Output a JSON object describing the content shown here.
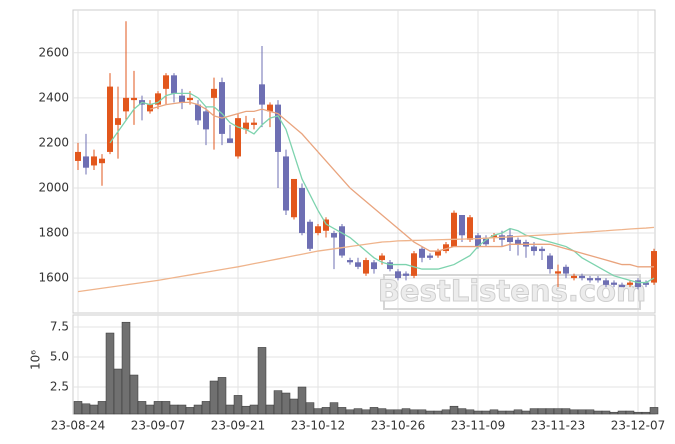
{
  "chart_data": [
    {
      "type": "candlestick",
      "ylim": [
        1445,
        2790
      ],
      "yticks": [
        1600,
        1800,
        2000,
        2200,
        2400,
        2600
      ],
      "grid": true,
      "up_color": "#e2571d",
      "down_color": "#6e6fb3",
      "watermark": "BestListens.com",
      "open": [
        2120,
        2140,
        2100,
        2110,
        2160,
        2280,
        2340,
        2390,
        2390,
        2340,
        2370,
        2440,
        2500,
        2410,
        2390,
        2370,
        2340,
        2400,
        2470,
        2220,
        2140,
        2260,
        2280,
        2460,
        2340,
        2370,
        2140,
        1870,
        2000,
        1850,
        1800,
        1810,
        1800,
        1830,
        1680,
        1670,
        1620,
        1670,
        1680,
        1670,
        1630,
        1620,
        1610,
        1730,
        1700,
        1700,
        1720,
        1740,
        1880,
        1770,
        1790,
        1780,
        1780,
        1790,
        1790,
        1770,
        1760,
        1740,
        1730,
        1700,
        1620,
        1650,
        1600,
        1610,
        1600,
        1600,
        1590,
        1580,
        1570,
        1570,
        1590,
        1580,
        1580
      ],
      "high": [
        2200,
        2240,
        2170,
        2150,
        2510,
        2450,
        2740,
        2520,
        2410,
        2390,
        2430,
        2510,
        2510,
        2440,
        2430,
        2390,
        2360,
        2490,
        2490,
        2280,
        2330,
        2320,
        2310,
        2630,
        2380,
        2390,
        2170,
        2040,
        2020,
        1860,
        1840,
        1870,
        1810,
        1840,
        1690,
        1690,
        1690,
        1680,
        1710,
        1680,
        1640,
        1630,
        1720,
        1740,
        1710,
        1730,
        1760,
        1900,
        1880,
        1880,
        1800,
        1790,
        1800,
        1810,
        1820,
        1780,
        1770,
        1760,
        1740,
        1710,
        1660,
        1660,
        1620,
        1620,
        1610,
        1610,
        1600,
        1590,
        1580,
        1590,
        1600,
        1590,
        1730
      ],
      "low": [
        2080,
        2060,
        2080,
        2010,
        2150,
        2130,
        2300,
        2280,
        2300,
        2330,
        2350,
        2370,
        2380,
        2350,
        2370,
        2280,
        2190,
        2170,
        2190,
        2200,
        2130,
        2240,
        2260,
        2270,
        2270,
        2000,
        1880,
        1860,
        1790,
        1720,
        1790,
        1780,
        1640,
        1690,
        1660,
        1640,
        1610,
        1620,
        1660,
        1630,
        1590,
        1590,
        1600,
        1670,
        1680,
        1690,
        1710,
        1740,
        1760,
        1760,
        1730,
        1740,
        1760,
        1740,
        1720,
        1700,
        1690,
        1700,
        1680,
        1620,
        1560,
        1600,
        1590,
        1590,
        1580,
        1580,
        1560,
        1560,
        1560,
        1560,
        1550,
        1560,
        1570
      ],
      "close": [
        2160,
        2090,
        2140,
        2130,
        2450,
        2310,
        2400,
        2400,
        2370,
        2370,
        2420,
        2500,
        2420,
        2380,
        2400,
        2300,
        2260,
        2440,
        2240,
        2200,
        2310,
        2290,
        2290,
        2370,
        2370,
        2160,
        1900,
        2040,
        1800,
        1730,
        1830,
        1860,
        1780,
        1700,
        1670,
        1650,
        1680,
        1640,
        1700,
        1640,
        1600,
        1610,
        1710,
        1690,
        1690,
        1720,
        1750,
        1890,
        1790,
        1870,
        1740,
        1750,
        1790,
        1770,
        1760,
        1750,
        1740,
        1720,
        1720,
        1640,
        1630,
        1620,
        1610,
        1600,
        1590,
        1590,
        1570,
        1570,
        1560,
        1580,
        1560,
        1570,
        1720
      ],
      "series": [
        {
          "color": "#7dd3ae",
          "values": [
            null,
            null,
            null,
            null,
            2200,
            2250,
            2300,
            2350,
            2380,
            2370,
            2380,
            2410,
            2420,
            2420,
            2420,
            2400,
            2360,
            2360,
            2330,
            2290,
            2270,
            2260,
            2240,
            2280,
            2310,
            2320,
            2260,
            2150,
            2040,
            1970,
            1900,
            1840,
            1820,
            1800,
            1780,
            1750,
            1720,
            1690,
            1670,
            1660,
            1660,
            1660,
            1650,
            1640,
            1640,
            1640,
            1650,
            1660,
            1680,
            1700,
            1740,
            1770,
            1790,
            1800,
            1820,
            1810,
            1790,
            1780,
            1770,
            1760,
            1750,
            1740,
            1720,
            1690,
            1670,
            1650,
            1630,
            1610,
            1600,
            1590,
            1580,
            1580,
            1600
          ]
        },
        {
          "color": "#e9a47e",
          "values": [
            null,
            null,
            null,
            null,
            null,
            null,
            null,
            null,
            null,
            2350,
            2360,
            2370,
            2375,
            2380,
            2380,
            2370,
            2350,
            2320,
            2310,
            2320,
            2330,
            2340,
            2340,
            2350,
            2340,
            2330,
            2300,
            2270,
            2240,
            2200,
            2160,
            2120,
            2080,
            2040,
            2000,
            1970,
            1940,
            1910,
            1880,
            1850,
            1820,
            1790,
            1760,
            1740,
            1720,
            1720,
            1730,
            1740,
            1740,
            1740,
            1740,
            1740,
            1740,
            1740,
            1750,
            1750,
            1750,
            1750,
            1750,
            1750,
            1740,
            1730,
            1720,
            1710,
            1700,
            1690,
            1680,
            1670,
            1660,
            1660,
            1650,
            1650,
            1650
          ]
        },
        {
          "color": "#efb48c",
          "values": [
            1540,
            1545,
            1550,
            1555,
            1560,
            1565,
            1570,
            1575,
            1580,
            1585,
            1590,
            1596,
            1602,
            1608,
            1614,
            1620,
            1626,
            1632,
            1638,
            1644,
            1650,
            1657,
            1664,
            1671,
            1678,
            1685,
            1692,
            1699,
            1706,
            1713,
            1720,
            1725,
            1730,
            1735,
            1740,
            1745,
            1750,
            1755,
            1760,
            1762,
            1765,
            1766,
            1767,
            1768,
            1769,
            1770,
            1771,
            1772,
            1773,
            1774,
            1775,
            1777,
            1779,
            1781,
            1783,
            1785,
            1787,
            1789,
            1791,
            1793,
            1795,
            1798,
            1800,
            1803,
            1805,
            1808,
            1810,
            1813,
            1815,
            1818,
            1820,
            1822,
            1825
          ]
        }
      ]
    },
    {
      "type": "bar",
      "ylim": [
        0.25,
        8.5
      ],
      "yticks": [
        2.5,
        {
          "value": 5,
          "label": "5.0"
        },
        7.5
      ],
      "grid": true,
      "ylabel": "10⁶",
      "color": "#707070",
      "categories": [
        "23-08-24",
        null,
        null,
        null,
        null,
        null,
        null,
        null,
        null,
        null,
        "23-09-07",
        null,
        null,
        null,
        null,
        null,
        null,
        null,
        null,
        null,
        "23-09-21",
        null,
        null,
        null,
        null,
        null,
        null,
        null,
        null,
        null,
        "23-10-12",
        null,
        null,
        null,
        null,
        null,
        null,
        null,
        null,
        null,
        "23-10-26",
        null,
        null,
        null,
        null,
        null,
        null,
        null,
        null,
        null,
        "23-11-09",
        null,
        null,
        null,
        null,
        null,
        null,
        null,
        null,
        null,
        "23-11-23",
        null,
        null,
        null,
        null,
        null,
        null,
        null,
        null,
        null,
        "23-12-07",
        null,
        null
      ],
      "values": [
        1.3,
        1.1,
        1.0,
        1.3,
        7.0,
        4.0,
        7.9,
        3.5,
        1.3,
        1.0,
        1.3,
        1.3,
        1.0,
        1.0,
        0.8,
        1.0,
        1.3,
        3.0,
        3.3,
        1.0,
        1.8,
        0.9,
        1.0,
        5.8,
        1.0,
        2.2,
        2.0,
        1.5,
        2.5,
        1.2,
        0.7,
        0.8,
        1.2,
        0.8,
        0.6,
        0.7,
        0.6,
        0.8,
        0.7,
        0.6,
        0.6,
        0.7,
        0.6,
        0.6,
        0.5,
        0.5,
        0.6,
        0.9,
        0.7,
        0.6,
        0.5,
        0.5,
        0.6,
        0.5,
        0.5,
        0.6,
        0.5,
        0.7,
        0.7,
        0.7,
        0.7,
        0.7,
        0.6,
        0.6,
        0.6,
        0.5,
        0.5,
        0.4,
        0.5,
        0.5,
        0.4,
        0.4,
        0.8
      ]
    }
  ]
}
